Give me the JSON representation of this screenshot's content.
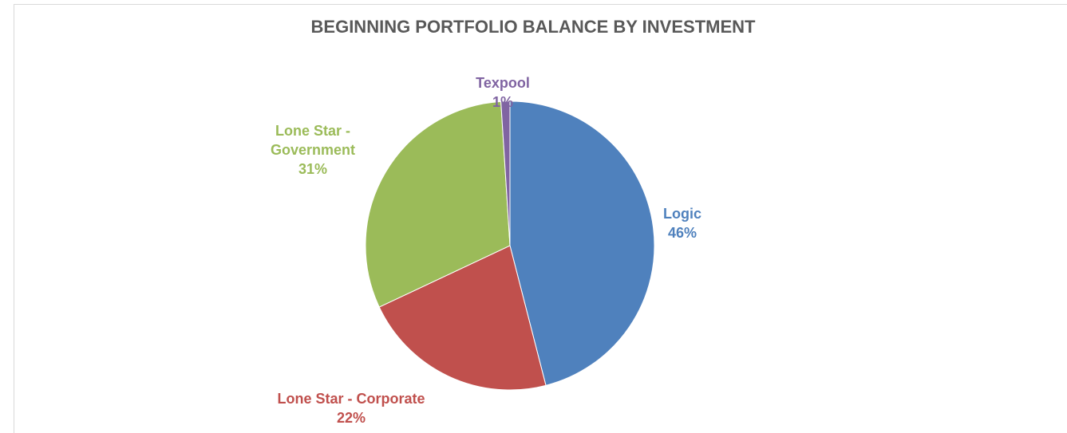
{
  "chart_data": {
    "type": "pie",
    "title": "BEGINNING PORTFOLIO BALANCE BY INVESTMENT",
    "categories": [
      "Logic",
      "Lone Star - Corporate",
      "Lone Star - Government",
      "Texpool"
    ],
    "values": [
      46,
      22,
      31,
      1
    ],
    "value_labels": [
      "46%",
      "22%",
      "31%",
      "1%"
    ],
    "colors": [
      "#4f81bd",
      "#c0504d",
      "#9bbb59",
      "#8064a2"
    ]
  }
}
